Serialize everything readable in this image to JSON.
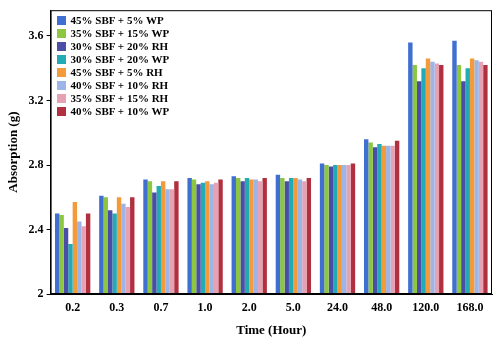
{
  "chart_data": {
    "type": "bar",
    "x_label": "Time (Hour)",
    "y_label": "Absorption (g)",
    "categories": [
      "0.2",
      "0.3",
      "0.7",
      "1.0",
      "2.0",
      "5.0",
      "24.0",
      "48.0",
      "120.0",
      "168.0"
    ],
    "series": [
      {
        "name": "45% SBF + 5% WP",
        "color": "#3f6fd1",
        "values": [
          2.5,
          2.61,
          2.71,
          2.72,
          2.73,
          2.74,
          2.81,
          2.96,
          3.56,
          3.57
        ]
      },
      {
        "name": "35% SBF + 15% WP",
        "color": "#8dc63f",
        "values": [
          2.49,
          2.6,
          2.7,
          2.71,
          2.72,
          2.72,
          2.8,
          2.94,
          3.42,
          3.42
        ]
      },
      {
        "name": "30% SBF + 20% RH",
        "color": "#4a4ea6",
        "values": [
          2.41,
          2.52,
          2.63,
          2.68,
          2.7,
          2.7,
          2.79,
          2.91,
          3.32,
          3.32
        ]
      },
      {
        "name": "30% SBF + 20% WP",
        "color": "#22abb5",
        "values": [
          2.31,
          2.5,
          2.67,
          2.69,
          2.72,
          2.72,
          2.8,
          2.93,
          3.4,
          3.4
        ]
      },
      {
        "name": "45% SBF + 5% RH",
        "color": "#f39a3b",
        "values": [
          2.57,
          2.6,
          2.7,
          2.7,
          2.71,
          2.72,
          2.8,
          2.92,
          3.46,
          3.46
        ]
      },
      {
        "name": "40% SBF + 10% RH",
        "color": "#9db5e6",
        "values": [
          2.45,
          2.56,
          2.65,
          2.68,
          2.71,
          2.71,
          2.8,
          2.92,
          3.44,
          3.45
        ]
      },
      {
        "name": "35% SBF + 15% RH",
        "color": "#e6a2b2",
        "values": [
          2.42,
          2.54,
          2.65,
          2.69,
          2.7,
          2.7,
          2.8,
          2.92,
          3.43,
          3.44
        ]
      },
      {
        "name": "40% SBF + 10% WP",
        "color": "#b0303f",
        "values": [
          2.5,
          2.6,
          2.7,
          2.71,
          2.72,
          2.72,
          2.81,
          2.95,
          3.42,
          3.42
        ]
      }
    ],
    "ylim": [
      2,
      3.76
    ],
    "yticks": [
      2,
      2.4,
      2.8,
      3.2,
      3.6
    ],
    "grid": false,
    "legend": "upper left"
  }
}
